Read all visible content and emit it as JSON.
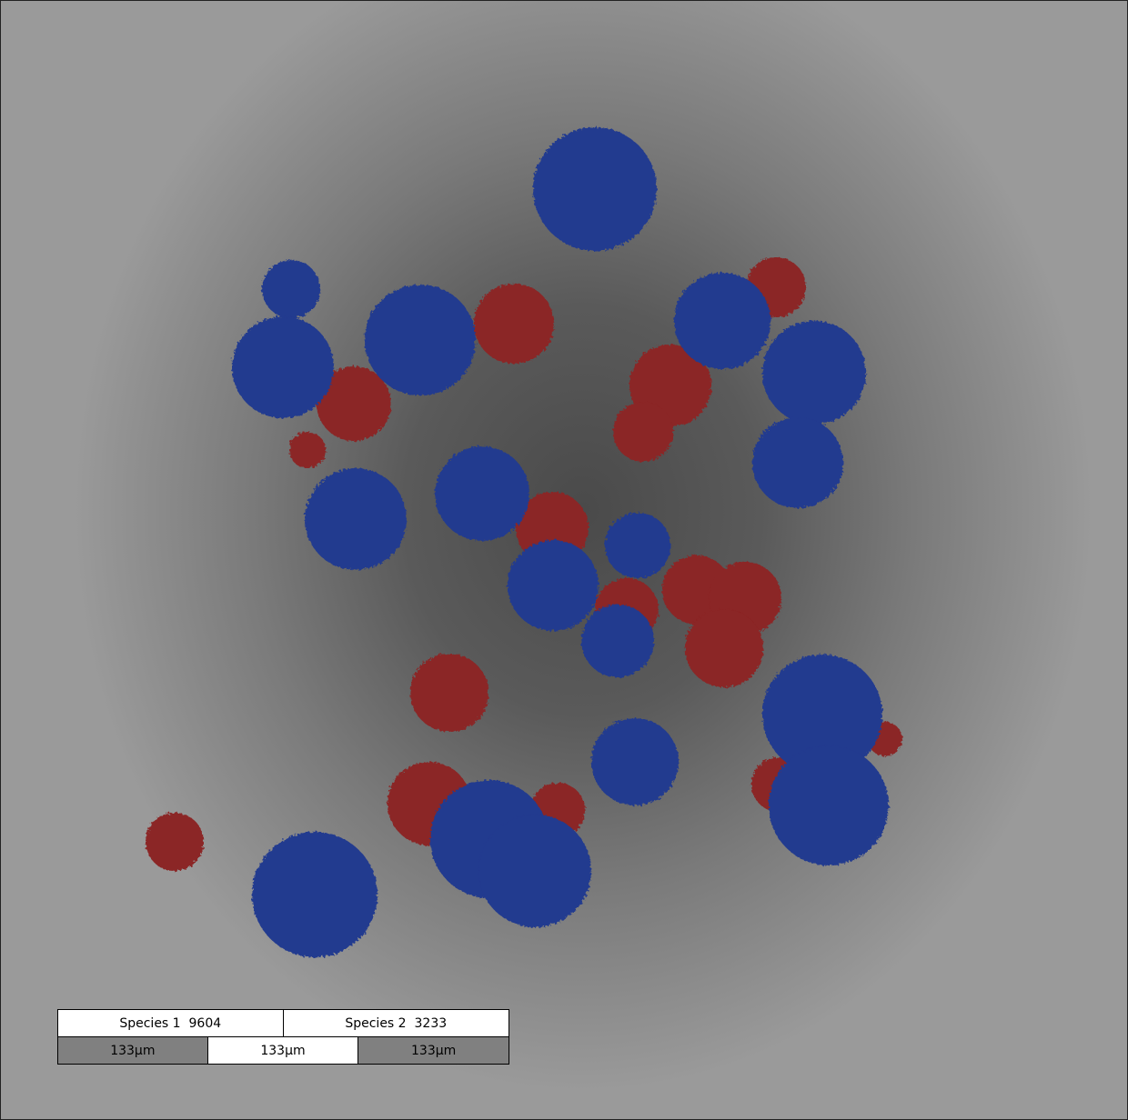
{
  "legend": {
    "species": [
      {
        "label": "Species 1",
        "count": "9604",
        "color": "#233a8f"
      },
      {
        "label": "Species 2",
        "count": "3233",
        "color": "#8b2525"
      }
    ],
    "scale_bars": [
      "133µm",
      "133µm",
      "133µm"
    ]
  },
  "colors": {
    "species1": "#233a8f",
    "species2": "#8b2525"
  }
}
